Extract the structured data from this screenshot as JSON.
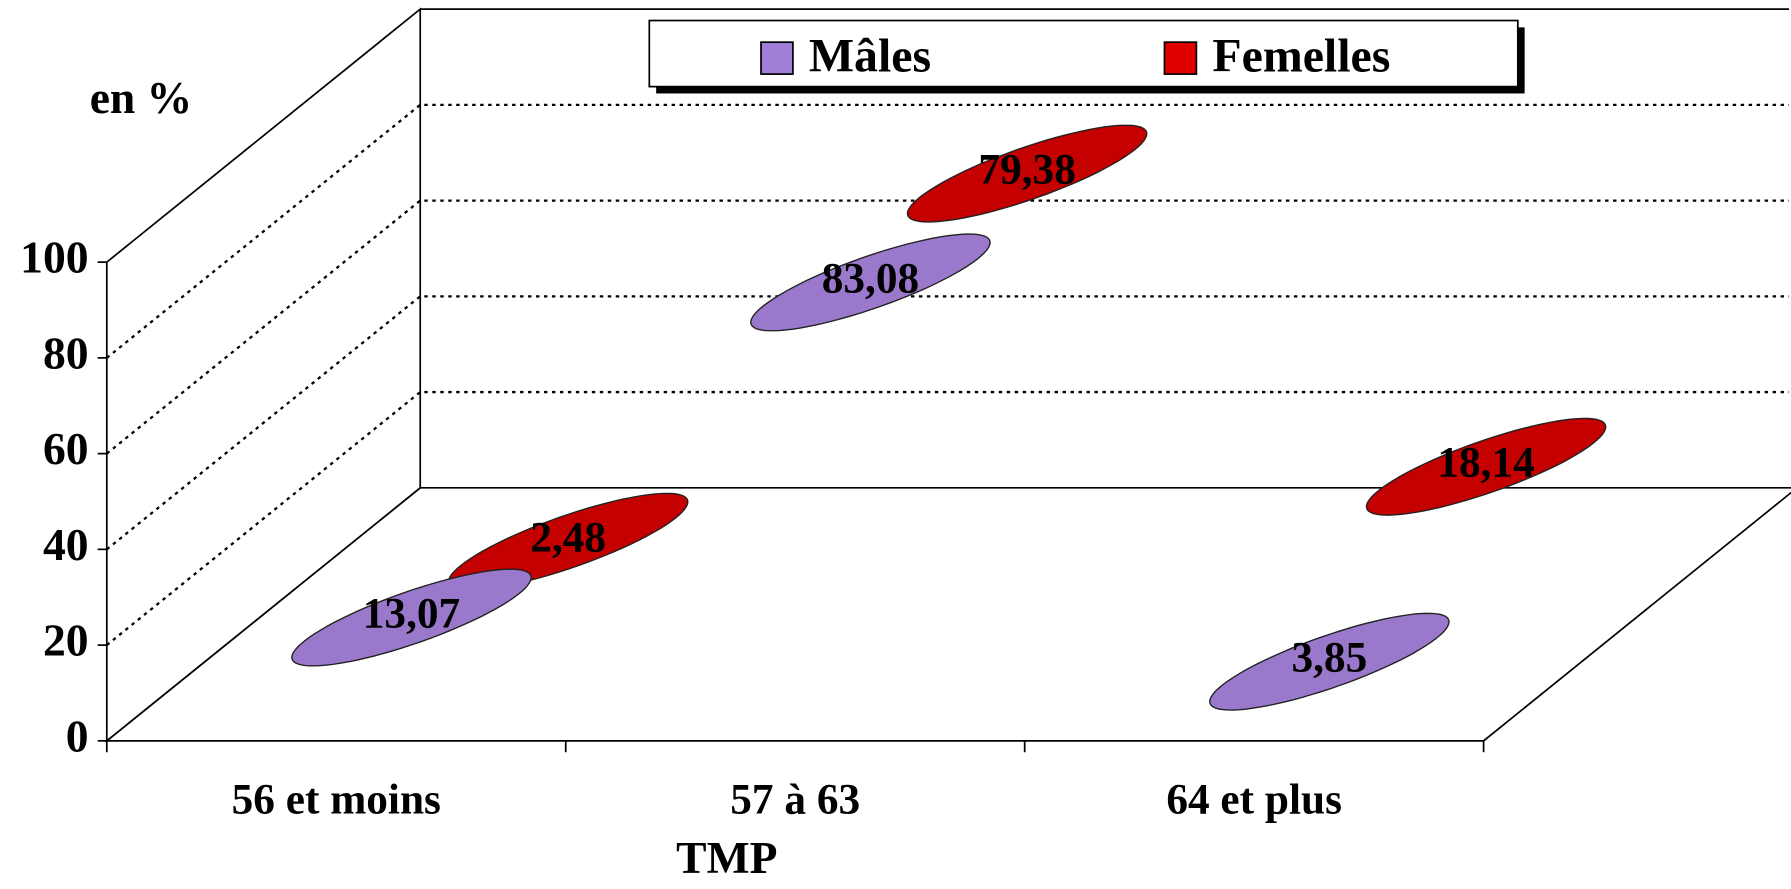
{
  "chart_data": {
    "type": "bar",
    "y_label": "en %",
    "x_label": "TMP",
    "categories": [
      "56 et moins",
      "57 à 63",
      "64 et plus"
    ],
    "series": [
      {
        "name": "Mâles",
        "color": "#a07fd8",
        "values": [
          13.07,
          83.08,
          3.85
        ],
        "value_labels": [
          "13,07",
          "83,08",
          "3,85"
        ]
      },
      {
        "name": "Femelles",
        "color": "#e00000",
        "values": [
          2.48,
          79.38,
          18.14
        ],
        "value_labels": [
          "2,48",
          "79,38",
          "18,14"
        ]
      }
    ],
    "ylim": [
      0,
      100
    ],
    "yticks": [
      0,
      20,
      40,
      60,
      80,
      100
    ],
    "grid": true,
    "legend": "top"
  }
}
